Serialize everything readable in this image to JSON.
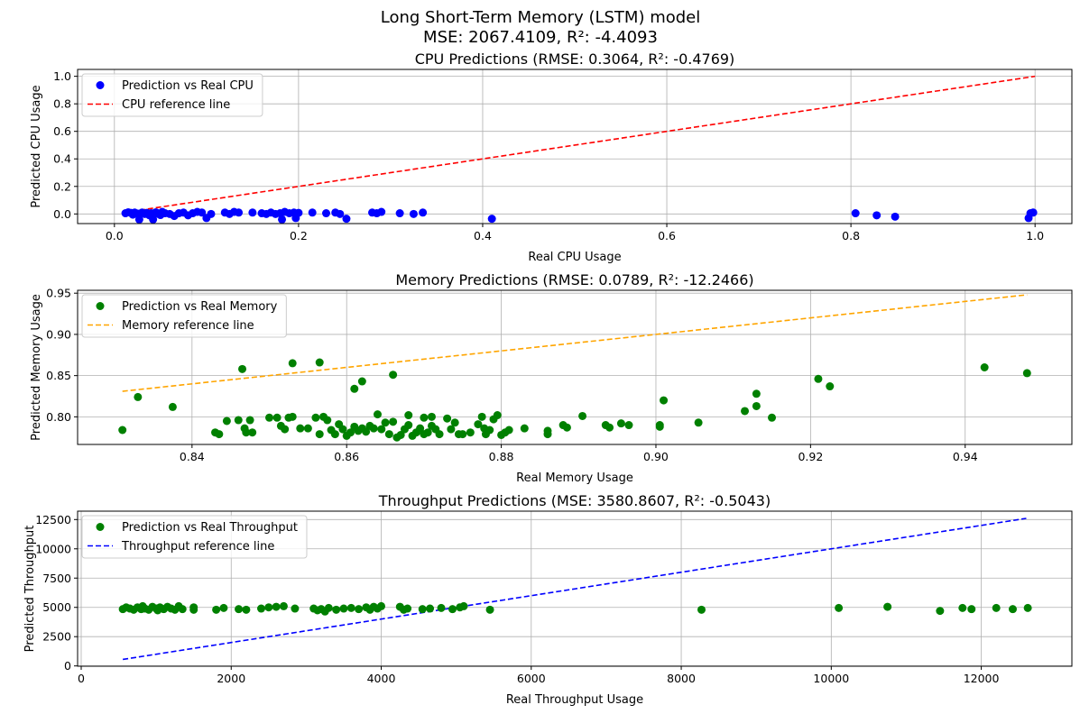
{
  "suptitle": [
    "Long Short-Term Memory (LSTM) model",
    "MSE: 2067.4109, R²: -4.4093"
  ],
  "chart_data": [
    {
      "type": "scatter",
      "title": "CPU Predictions (RMSE: 0.3064, R²: -0.4769)",
      "xlabel": "Real CPU Usage",
      "ylabel": "Predicted CPU Usage",
      "xlim": [
        -0.04,
        1.04
      ],
      "ylim": [
        -0.07,
        1.05
      ],
      "xticks": [
        0.0,
        0.2,
        0.4,
        0.6,
        0.8,
        1.0
      ],
      "xtick_labels": [
        "0.0",
        "0.2",
        "0.4",
        "0.6",
        "0.8",
        "1.0"
      ],
      "yticks": [
        0.0,
        0.2,
        0.4,
        0.6,
        0.8,
        1.0
      ],
      "ytick_labels": [
        "0.0",
        "0.2",
        "0.4",
        "0.6",
        "0.8",
        "1.0"
      ],
      "grid": true,
      "legend_position": "upper-left",
      "point_color": "#0000ff",
      "line_color": "#ff0000",
      "point_label": "Prediction vs Real CPU",
      "line_label": "CPU reference line",
      "reference_line": [
        [
          0.01,
          0.01
        ],
        [
          1.0,
          1.0
        ]
      ],
      "points": [
        [
          0.012,
          0.005
        ],
        [
          0.015,
          0.012
        ],
        [
          0.018,
          0.008
        ],
        [
          0.02,
          -0.005
        ],
        [
          0.022,
          0.01
        ],
        [
          0.025,
          0.003
        ],
        [
          0.027,
          -0.04
        ],
        [
          0.03,
          0.01
        ],
        [
          0.033,
          0.0
        ],
        [
          0.035,
          0.008
        ],
        [
          0.038,
          -0.01
        ],
        [
          0.04,
          0.005
        ],
        [
          0.042,
          -0.04
        ],
        [
          0.045,
          0.012
        ],
        [
          0.048,
          0.0
        ],
        [
          0.05,
          -0.008
        ],
        [
          0.052,
          0.015
        ],
        [
          0.055,
          0.005
        ],
        [
          0.06,
          0.0
        ],
        [
          0.065,
          -0.015
        ],
        [
          0.07,
          0.005
        ],
        [
          0.075,
          0.01
        ],
        [
          0.08,
          -0.01
        ],
        [
          0.085,
          0.005
        ],
        [
          0.09,
          0.015
        ],
        [
          0.095,
          0.01
        ],
        [
          0.1,
          -0.03
        ],
        [
          0.105,
          0.0
        ],
        [
          0.12,
          0.01
        ],
        [
          0.125,
          0.0
        ],
        [
          0.13,
          0.015
        ],
        [
          0.135,
          0.01
        ],
        [
          0.15,
          0.01
        ],
        [
          0.16,
          0.005
        ],
        [
          0.165,
          0.0
        ],
        [
          0.17,
          0.01
        ],
        [
          0.175,
          0.0
        ],
        [
          0.18,
          0.005
        ],
        [
          0.182,
          -0.04
        ],
        [
          0.185,
          0.015
        ],
        [
          0.19,
          0.005
        ],
        [
          0.195,
          0.01
        ],
        [
          0.197,
          -0.03
        ],
        [
          0.2,
          0.008
        ],
        [
          0.215,
          0.01
        ],
        [
          0.23,
          0.005
        ],
        [
          0.24,
          0.01
        ],
        [
          0.245,
          0.0
        ],
        [
          0.252,
          -0.035
        ],
        [
          0.28,
          0.01
        ],
        [
          0.285,
          0.005
        ],
        [
          0.29,
          0.015
        ],
        [
          0.31,
          0.005
        ],
        [
          0.325,
          0.0
        ],
        [
          0.335,
          0.01
        ],
        [
          0.41,
          -0.035
        ],
        [
          0.805,
          0.005
        ],
        [
          0.828,
          -0.01
        ],
        [
          0.848,
          -0.02
        ],
        [
          0.993,
          -0.03
        ],
        [
          0.995,
          0.005
        ],
        [
          0.998,
          0.01
        ]
      ]
    },
    {
      "type": "scatter",
      "title": "Memory Predictions (RMSE: 0.0789, R²: -12.2466)",
      "xlabel": "Real Memory Usage",
      "ylabel": "Predicted Memory Usage",
      "xlim": [
        0.8252,
        0.9538
      ],
      "ylim": [
        0.7665,
        0.9535
      ],
      "xticks": [
        0.84,
        0.86,
        0.88,
        0.9,
        0.92,
        0.94
      ],
      "xtick_labels": [
        "0.84",
        "0.86",
        "0.88",
        "0.90",
        "0.92",
        "0.94"
      ],
      "yticks": [
        0.8,
        0.85,
        0.9,
        0.95
      ],
      "ytick_labels": [
        "0.80",
        "0.85",
        "0.90",
        "0.95"
      ],
      "grid": true,
      "legend_position": "upper-left",
      "point_color": "#008000",
      "line_color": "#ffa500",
      "point_label": "Prediction vs Real Memory",
      "line_label": "Memory reference line",
      "reference_line": [
        [
          0.831,
          0.831
        ],
        [
          0.948,
          0.948
        ]
      ],
      "points": [
        [
          0.831,
          0.784
        ],
        [
          0.833,
          0.824
        ],
        [
          0.8375,
          0.812
        ],
        [
          0.843,
          0.781
        ],
        [
          0.8435,
          0.779
        ],
        [
          0.8445,
          0.795
        ],
        [
          0.846,
          0.796
        ],
        [
          0.8465,
          0.858
        ],
        [
          0.8468,
          0.786
        ],
        [
          0.847,
          0.781
        ],
        [
          0.8475,
          0.796
        ],
        [
          0.8478,
          0.781
        ],
        [
          0.85,
          0.799
        ],
        [
          0.851,
          0.799
        ],
        [
          0.8515,
          0.789
        ],
        [
          0.852,
          0.785
        ],
        [
          0.8525,
          0.799
        ],
        [
          0.853,
          0.8
        ],
        [
          0.853,
          0.865
        ],
        [
          0.854,
          0.786
        ],
        [
          0.855,
          0.786
        ],
        [
          0.856,
          0.799
        ],
        [
          0.8565,
          0.779
        ],
        [
          0.857,
          0.8
        ],
        [
          0.8575,
          0.796
        ],
        [
          0.8565,
          0.866
        ],
        [
          0.858,
          0.784
        ],
        [
          0.8585,
          0.779
        ],
        [
          0.859,
          0.791
        ],
        [
          0.8595,
          0.785
        ],
        [
          0.86,
          0.777
        ],
        [
          0.8605,
          0.781
        ],
        [
          0.861,
          0.788
        ],
        [
          0.8615,
          0.783
        ],
        [
          0.862,
          0.786
        ],
        [
          0.8625,
          0.782
        ],
        [
          0.861,
          0.834
        ],
        [
          0.862,
          0.843
        ],
        [
          0.863,
          0.789
        ],
        [
          0.8635,
          0.786
        ],
        [
          0.864,
          0.803
        ],
        [
          0.8645,
          0.785
        ],
        [
          0.865,
          0.793
        ],
        [
          0.8655,
          0.779
        ],
        [
          0.866,
          0.794
        ],
        [
          0.866,
          0.851
        ],
        [
          0.8665,
          0.775
        ],
        [
          0.867,
          0.778
        ],
        [
          0.8675,
          0.785
        ],
        [
          0.868,
          0.79
        ],
        [
          0.868,
          0.802
        ],
        [
          0.8685,
          0.777
        ],
        [
          0.869,
          0.781
        ],
        [
          0.8695,
          0.786
        ],
        [
          0.87,
          0.779
        ],
        [
          0.87,
          0.799
        ],
        [
          0.8705,
          0.781
        ],
        [
          0.871,
          0.789
        ],
        [
          0.871,
          0.8
        ],
        [
          0.8715,
          0.785
        ],
        [
          0.872,
          0.779
        ],
        [
          0.873,
          0.798
        ],
        [
          0.8735,
          0.785
        ],
        [
          0.874,
          0.793
        ],
        [
          0.8745,
          0.779
        ],
        [
          0.875,
          0.779
        ],
        [
          0.876,
          0.781
        ],
        [
          0.877,
          0.791
        ],
        [
          0.8775,
          0.8
        ],
        [
          0.8778,
          0.786
        ],
        [
          0.878,
          0.779
        ],
        [
          0.8785,
          0.784
        ],
        [
          0.879,
          0.797
        ],
        [
          0.8795,
          0.802
        ],
        [
          0.88,
          0.778
        ],
        [
          0.8805,
          0.781
        ],
        [
          0.881,
          0.784
        ],
        [
          0.883,
          0.786
        ],
        [
          0.886,
          0.779
        ],
        [
          0.886,
          0.783
        ],
        [
          0.888,
          0.79
        ],
        [
          0.8885,
          0.787
        ],
        [
          0.8905,
          0.801
        ],
        [
          0.8935,
          0.79
        ],
        [
          0.894,
          0.787
        ],
        [
          0.8955,
          0.792
        ],
        [
          0.8965,
          0.79
        ],
        [
          0.9005,
          0.788
        ],
        [
          0.9005,
          0.79
        ],
        [
          0.901,
          0.82
        ],
        [
          0.9055,
          0.793
        ],
        [
          0.9115,
          0.807
        ],
        [
          0.913,
          0.813
        ],
        [
          0.913,
          0.828
        ],
        [
          0.915,
          0.799
        ],
        [
          0.921,
          0.846
        ],
        [
          0.9225,
          0.837
        ],
        [
          0.9425,
          0.86
        ],
        [
          0.948,
          0.853
        ]
      ]
    },
    {
      "type": "scatter",
      "title": "Throughput Predictions (MSE: 3580.8607, R²: -0.5043)",
      "xlabel": "Real Throughput Usage",
      "ylabel": "Predicted Throughput",
      "xlim": [
        -48,
        13208
      ],
      "ylim": [
        -25,
        13216
      ],
      "xticks": [
        0,
        2000,
        4000,
        6000,
        8000,
        10000,
        12000
      ],
      "xtick_labels": [
        "0",
        "2000",
        "4000",
        "6000",
        "8000",
        "10000",
        "12000"
      ],
      "yticks": [
        0,
        2500,
        5000,
        7500,
        10000,
        12500
      ],
      "ytick_labels": [
        "0",
        "2500",
        "5000",
        "7500",
        "10000",
        "12500"
      ],
      "grid": true,
      "legend_position": "upper-left",
      "point_color": "#008000",
      "line_color": "#0000ff",
      "point_label": "Prediction vs Real Throughput",
      "line_label": "Throughput reference line",
      "reference_line": [
        [
          555,
          555
        ],
        [
          12600,
          12600
        ]
      ],
      "points": [
        [
          555,
          4850
        ],
        [
          600,
          5000
        ],
        [
          650,
          4900
        ],
        [
          700,
          4800
        ],
        [
          750,
          5000
        ],
        [
          800,
          4850
        ],
        [
          820,
          5100
        ],
        [
          850,
          4900
        ],
        [
          900,
          4800
        ],
        [
          950,
          5050
        ],
        [
          1000,
          4900
        ],
        [
          1020,
          4750
        ],
        [
          1050,
          5000
        ],
        [
          1100,
          4850
        ],
        [
          1150,
          5050
        ],
        [
          1200,
          4900
        ],
        [
          1250,
          4800
        ],
        [
          1300,
          5100
        ],
        [
          1350,
          4850
        ],
        [
          1500,
          5000
        ],
        [
          1500,
          4800
        ],
        [
          1800,
          4800
        ],
        [
          1900,
          4950
        ],
        [
          2100,
          4850
        ],
        [
          2200,
          4800
        ],
        [
          2400,
          4900
        ],
        [
          2500,
          5000
        ],
        [
          2600,
          5050
        ],
        [
          2700,
          5100
        ],
        [
          2850,
          4900
        ],
        [
          3100,
          4900
        ],
        [
          3150,
          4750
        ],
        [
          3200,
          4850
        ],
        [
          3250,
          4650
        ],
        [
          3300,
          4950
        ],
        [
          3400,
          4800
        ],
        [
          3500,
          4900
        ],
        [
          3600,
          4950
        ],
        [
          3700,
          4850
        ],
        [
          3800,
          5000
        ],
        [
          3850,
          4800
        ],
        [
          3900,
          5050
        ],
        [
          3950,
          4900
        ],
        [
          4000,
          5100
        ],
        [
          4250,
          5050
        ],
        [
          4300,
          4800
        ],
        [
          4350,
          4900
        ],
        [
          4550,
          4850
        ],
        [
          4650,
          4900
        ],
        [
          4800,
          4950
        ],
        [
          4950,
          4850
        ],
        [
          5050,
          5000
        ],
        [
          5100,
          5100
        ],
        [
          5450,
          4800
        ],
        [
          8270,
          4800
        ],
        [
          10100,
          4950
        ],
        [
          10750,
          5050
        ],
        [
          11450,
          4700
        ],
        [
          11750,
          4950
        ],
        [
          11870,
          4850
        ],
        [
          12200,
          4950
        ],
        [
          12420,
          4850
        ],
        [
          12620,
          4950
        ]
      ]
    }
  ]
}
